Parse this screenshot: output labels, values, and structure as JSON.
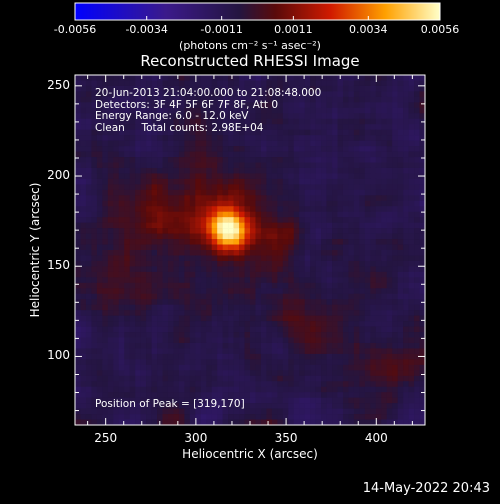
{
  "colorbar": {
    "tick_labels": [
      "-0.0056",
      "-0.0034",
      "-0.0011",
      "0.0011",
      "0.0034",
      "0.0056"
    ],
    "tick_values": [
      -0.0056,
      -0.0034,
      -0.0011,
      0.0011,
      0.0034,
      0.0056
    ],
    "units": "(photons cm⁻² s⁻¹ asec⁻²)",
    "colormap": "blue-purple-red-yellow-white"
  },
  "info": {
    "line1": "20-Jun-2013 21:04:00.000 to 21:08:48.000",
    "line2": "Detectors: 3F 4F 5F 6F 7F 8F, Att 0",
    "line3": "Energy Range: 6.0 - 12.0 keV",
    "line4": "Clean     Total counts: 2.98E+04"
  },
  "peak_text": "Position of Peak = [319,170]",
  "footer_timestamp": "14-May-2022 20:43",
  "chart_data": {
    "type": "heatmap",
    "title": "Reconstructed RHESSI Image",
    "xlabel": "Heliocentric X (arcsec)",
    "ylabel": "Heliocentric Y (arcsec)",
    "xlim": [
      233,
      427
    ],
    "ylim": [
      62,
      256
    ],
    "xticks": [
      250,
      300,
      350,
      400
    ],
    "yticks": [
      100,
      150,
      200,
      250
    ],
    "xtick_labels": [
      "250",
      "300",
      "350",
      "400"
    ],
    "ytick_labels": [
      "100",
      "150",
      "200",
      "250"
    ],
    "peak": {
      "x": 319,
      "y": 170
    },
    "value_range": [
      -0.0056,
      0.0056
    ],
    "sources": [
      {
        "x": 319,
        "y": 170,
        "sigma": 8,
        "amp": 0.0056
      },
      {
        "x": 305,
        "y": 178,
        "sigma": 22,
        "amp": 0.0018
      },
      {
        "x": 345,
        "y": 165,
        "sigma": 10,
        "amp": 0.0013
      },
      {
        "x": 265,
        "y": 178,
        "sigma": 12,
        "amp": 0.001
      },
      {
        "x": 360,
        "y": 120,
        "sigma": 14,
        "amp": 0.001
      },
      {
        "x": 395,
        "y": 95,
        "sigma": 18,
        "amp": 0.0009
      },
      {
        "x": 250,
        "y": 140,
        "sigma": 10,
        "amp": 0.0007
      }
    ]
  }
}
